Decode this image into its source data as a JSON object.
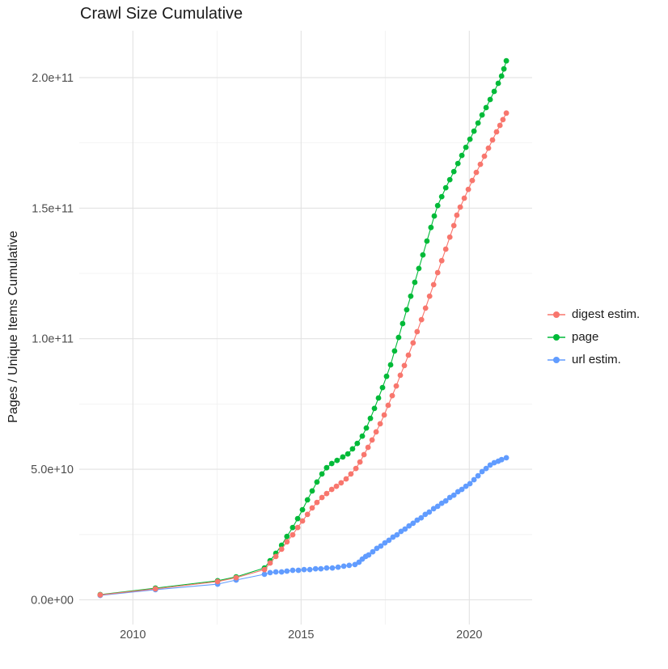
{
  "title": "Crawl Size Cumulative",
  "y_axis": {
    "label": "Pages / Unique Items Cumulative",
    "tick_labels": [
      "0.0e+00",
      "5.0e+10",
      "1.0e+11",
      "1.5e+11",
      "2.0e+11"
    ],
    "tick_values_billions": [
      0,
      50,
      100,
      150,
      200
    ],
    "minor_values_billions": [
      25,
      75,
      125,
      175
    ]
  },
  "x_axis": {
    "tick_labels": [
      "2010",
      "2015",
      "2020"
    ],
    "tick_values": [
      2010,
      2015,
      2020
    ],
    "minor_values": [
      2012.5,
      2017.5
    ]
  },
  "legend": {
    "items": [
      {
        "label": "digest estim.",
        "color": "#F8766D"
      },
      {
        "label": "page",
        "color": "#00BA38"
      },
      {
        "label": "url estim.",
        "color": "#619CFF"
      }
    ]
  },
  "colors": {
    "digest": "#F8766D",
    "page": "#00BA38",
    "url": "#619CFF",
    "grid_major": "#E2E2E2",
    "grid_minor": "#F0F0F0",
    "axis_text": "#4d4d4d"
  },
  "chart_data": {
    "type": "line",
    "title": "Crawl Size Cumulative",
    "xlabel": "",
    "ylabel": "Pages / Unique Items Cumulative",
    "x_unit": "decimal year",
    "y_unit": "cumulative count (billions, 1e9)",
    "xlim": [
      2008.4,
      2021.9
    ],
    "ylim_billions": [
      -9,
      217
    ],
    "grid": "on",
    "legend_position": "right",
    "marker": "point",
    "series": [
      {
        "name": "url estim.",
        "color": "#619CFF",
        "points": [
          [
            2009.03,
            1.7
          ],
          [
            2010.67,
            3.9
          ],
          [
            2012.52,
            6.0
          ],
          [
            2013.07,
            7.6
          ],
          [
            2013.91,
            9.8
          ],
          [
            2014.08,
            10.4
          ],
          [
            2014.25,
            10.7
          ],
          [
            2014.42,
            10.7
          ],
          [
            2014.58,
            11.0
          ],
          [
            2014.75,
            11.3
          ],
          [
            2014.92,
            11.3
          ],
          [
            2015.09,
            11.6
          ],
          [
            2015.26,
            11.6
          ],
          [
            2015.43,
            11.9
          ],
          [
            2015.59,
            11.9
          ],
          [
            2015.76,
            12.2
          ],
          [
            2015.93,
            12.2
          ],
          [
            2016.1,
            12.5
          ],
          [
            2016.27,
            12.9
          ],
          [
            2016.43,
            13.2
          ],
          [
            2016.6,
            13.5
          ],
          [
            2016.72,
            14.4
          ],
          [
            2016.82,
            15.6
          ],
          [
            2016.92,
            16.6
          ],
          [
            2017.01,
            17.2
          ],
          [
            2017.13,
            18.4
          ],
          [
            2017.25,
            19.7
          ],
          [
            2017.37,
            20.6
          ],
          [
            2017.49,
            21.8
          ],
          [
            2017.61,
            22.8
          ],
          [
            2017.73,
            24.0
          ],
          [
            2017.85,
            24.9
          ],
          [
            2017.97,
            26.2
          ],
          [
            2018.09,
            27.1
          ],
          [
            2018.21,
            28.3
          ],
          [
            2018.33,
            29.3
          ],
          [
            2018.45,
            30.5
          ],
          [
            2018.57,
            31.4
          ],
          [
            2018.69,
            32.7
          ],
          [
            2018.81,
            33.6
          ],
          [
            2018.94,
            34.9
          ],
          [
            2019.06,
            35.8
          ],
          [
            2019.18,
            37.0
          ],
          [
            2019.3,
            37.9
          ],
          [
            2019.42,
            39.2
          ],
          [
            2019.54,
            40.1
          ],
          [
            2019.66,
            41.4
          ],
          [
            2019.78,
            42.3
          ],
          [
            2019.9,
            43.5
          ],
          [
            2020.02,
            44.5
          ],
          [
            2020.14,
            46.0
          ],
          [
            2020.26,
            47.5
          ],
          [
            2020.38,
            49.1
          ],
          [
            2020.5,
            50.3
          ],
          [
            2020.62,
            51.6
          ],
          [
            2020.74,
            52.5
          ],
          [
            2020.86,
            53.1
          ],
          [
            2020.96,
            53.7
          ],
          [
            2021.1,
            54.4
          ]
        ]
      },
      {
        "name": "page",
        "color": "#00BA38",
        "points": [
          [
            2009.03,
            2.0
          ],
          [
            2010.67,
            4.5
          ],
          [
            2012.52,
            7.3
          ],
          [
            2013.07,
            8.8
          ],
          [
            2013.91,
            12.2
          ],
          [
            2014.08,
            15.0
          ],
          [
            2014.25,
            17.8
          ],
          [
            2014.42,
            20.9
          ],
          [
            2014.58,
            24.3
          ],
          [
            2014.75,
            27.7
          ],
          [
            2014.9,
            31.1
          ],
          [
            2015.04,
            34.5
          ],
          [
            2015.19,
            38.3
          ],
          [
            2015.33,
            41.7
          ],
          [
            2015.47,
            45.1
          ],
          [
            2015.62,
            48.2
          ],
          [
            2015.76,
            50.6
          ],
          [
            2015.91,
            52.2
          ],
          [
            2016.07,
            53.4
          ],
          [
            2016.24,
            54.7
          ],
          [
            2016.39,
            55.9
          ],
          [
            2016.53,
            57.8
          ],
          [
            2016.67,
            59.9
          ],
          [
            2016.82,
            62.7
          ],
          [
            2016.94,
            65.8
          ],
          [
            2017.06,
            69.5
          ],
          [
            2017.18,
            73.3
          ],
          [
            2017.3,
            77.3
          ],
          [
            2017.42,
            81.3
          ],
          [
            2017.54,
            85.6
          ],
          [
            2017.66,
            90.0
          ],
          [
            2017.78,
            95.3
          ],
          [
            2017.9,
            100.5
          ],
          [
            2018.02,
            105.8
          ],
          [
            2018.14,
            111.1
          ],
          [
            2018.26,
            116.3
          ],
          [
            2018.38,
            121.6
          ],
          [
            2018.5,
            126.9
          ],
          [
            2018.62,
            132.1
          ],
          [
            2018.74,
            137.4
          ],
          [
            2018.86,
            142.6
          ],
          [
            2018.96,
            147.0
          ],
          [
            2019.06,
            151.0
          ],
          [
            2019.18,
            154.4
          ],
          [
            2019.3,
            157.8
          ],
          [
            2019.42,
            160.9
          ],
          [
            2019.54,
            164.0
          ],
          [
            2019.66,
            167.1
          ],
          [
            2019.78,
            170.2
          ],
          [
            2019.9,
            173.3
          ],
          [
            2020.02,
            176.4
          ],
          [
            2020.14,
            179.5
          ],
          [
            2020.26,
            182.6
          ],
          [
            2020.38,
            185.7
          ],
          [
            2020.5,
            188.5
          ],
          [
            2020.62,
            191.6
          ],
          [
            2020.74,
            194.7
          ],
          [
            2020.86,
            197.8
          ],
          [
            2020.96,
            200.6
          ],
          [
            2021.03,
            203.3
          ],
          [
            2021.1,
            206.4
          ]
        ]
      },
      {
        "name": "digest estim.",
        "color": "#F8766D",
        "points": [
          [
            2009.03,
            1.9
          ],
          [
            2010.67,
            4.2
          ],
          [
            2012.52,
            7.0
          ],
          [
            2013.07,
            8.5
          ],
          [
            2013.91,
            11.6
          ],
          [
            2014.08,
            14.1
          ],
          [
            2014.25,
            16.6
          ],
          [
            2014.42,
            19.4
          ],
          [
            2014.58,
            22.2
          ],
          [
            2014.75,
            24.9
          ],
          [
            2014.9,
            27.7
          ],
          [
            2015.04,
            30.2
          ],
          [
            2015.19,
            32.7
          ],
          [
            2015.33,
            35.2
          ],
          [
            2015.47,
            37.3
          ],
          [
            2015.62,
            39.2
          ],
          [
            2015.76,
            40.7
          ],
          [
            2015.91,
            42.3
          ],
          [
            2016.05,
            43.5
          ],
          [
            2016.19,
            44.8
          ],
          [
            2016.34,
            46.3
          ],
          [
            2016.48,
            48.2
          ],
          [
            2016.63,
            50.3
          ],
          [
            2016.75,
            52.8
          ],
          [
            2016.87,
            55.6
          ],
          [
            2016.99,
            58.4
          ],
          [
            2017.11,
            61.2
          ],
          [
            2017.23,
            64.3
          ],
          [
            2017.35,
            67.4
          ],
          [
            2017.47,
            70.8
          ],
          [
            2017.59,
            74.5
          ],
          [
            2017.71,
            78.2
          ],
          [
            2017.83,
            81.9
          ],
          [
            2017.95,
            86.0
          ],
          [
            2018.07,
            89.7
          ],
          [
            2018.19,
            93.7
          ],
          [
            2018.33,
            98.4
          ],
          [
            2018.45,
            102.7
          ],
          [
            2018.58,
            107.3
          ],
          [
            2018.7,
            111.7
          ],
          [
            2018.82,
            116.3
          ],
          [
            2018.94,
            120.7
          ],
          [
            2019.06,
            125.3
          ],
          [
            2019.18,
            129.9
          ],
          [
            2019.3,
            134.3
          ],
          [
            2019.42,
            138.9
          ],
          [
            2019.54,
            143.3
          ],
          [
            2019.63,
            147.3
          ],
          [
            2019.73,
            150.4
          ],
          [
            2019.85,
            153.8
          ],
          [
            2019.97,
            157.2
          ],
          [
            2020.09,
            160.6
          ],
          [
            2020.21,
            163.7
          ],
          [
            2020.33,
            166.8
          ],
          [
            2020.45,
            169.9
          ],
          [
            2020.57,
            173.0
          ],
          [
            2020.69,
            176.1
          ],
          [
            2020.81,
            179.2
          ],
          [
            2020.91,
            181.7
          ],
          [
            2021.0,
            183.9
          ],
          [
            2021.1,
            186.4
          ]
        ]
      }
    ]
  }
}
